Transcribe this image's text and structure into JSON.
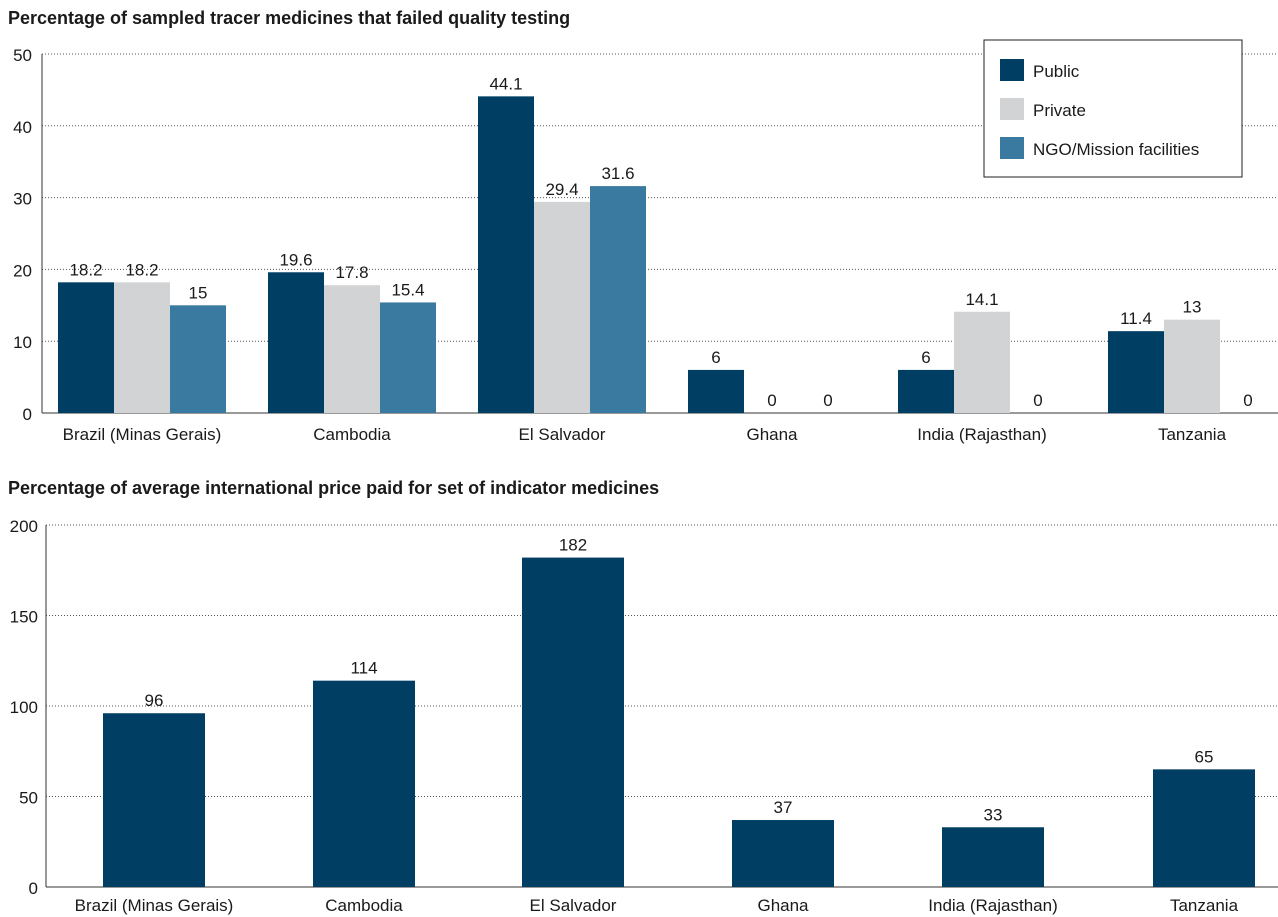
{
  "chart_data": [
    {
      "type": "bar",
      "title": "Percentage of sampled tracer medicines that failed quality testing",
      "categories": [
        "Brazil (Minas Gerais)",
        "Cambodia",
        "El Salvador",
        "Ghana",
        "India (Rajasthan)",
        "Tanzania"
      ],
      "series": [
        {
          "name": "Public",
          "values": [
            18.2,
            19.6,
            44.1,
            6,
            6,
            11.4
          ],
          "labels": [
            "18.2",
            "19.6",
            "44.1",
            "6",
            "6",
            "11.4"
          ],
          "color": "#003f63"
        },
        {
          "name": "Private",
          "values": [
            18.2,
            17.8,
            29.4,
            0,
            14.1,
            13
          ],
          "labels": [
            "18.2",
            "17.8",
            "29.4",
            "0",
            "14.1",
            "13"
          ],
          "color": "#d2d3d5"
        },
        {
          "name": "NGO/Mission facilities",
          "values": [
            15,
            15.4,
            31.6,
            0,
            0,
            0
          ],
          "labels": [
            "15",
            "15.4",
            "31.6",
            "0",
            "0",
            "0"
          ],
          "color": "#3a7aa0"
        }
      ],
      "ylim": [
        0,
        50
      ],
      "yticks": [
        "0",
        "10",
        "20",
        "30",
        "40",
        "50"
      ],
      "grid": true,
      "legend": "top-right"
    },
    {
      "type": "bar",
      "title": "Percentage of average international price paid for set of indicator medicines",
      "categories": [
        "Brazil (Minas Gerais)",
        "Cambodia",
        "El Salvador",
        "Ghana",
        "India (Rajasthan)",
        "Tanzania"
      ],
      "values": [
        96,
        114,
        182,
        37,
        33,
        65
      ],
      "labels": [
        "96",
        "114",
        "182",
        "37",
        "33",
        "65"
      ],
      "color": "#003f63",
      "ylim": [
        0,
        200
      ],
      "yticks": [
        "0",
        "50",
        "100",
        "150",
        "200"
      ],
      "grid": true
    }
  ]
}
